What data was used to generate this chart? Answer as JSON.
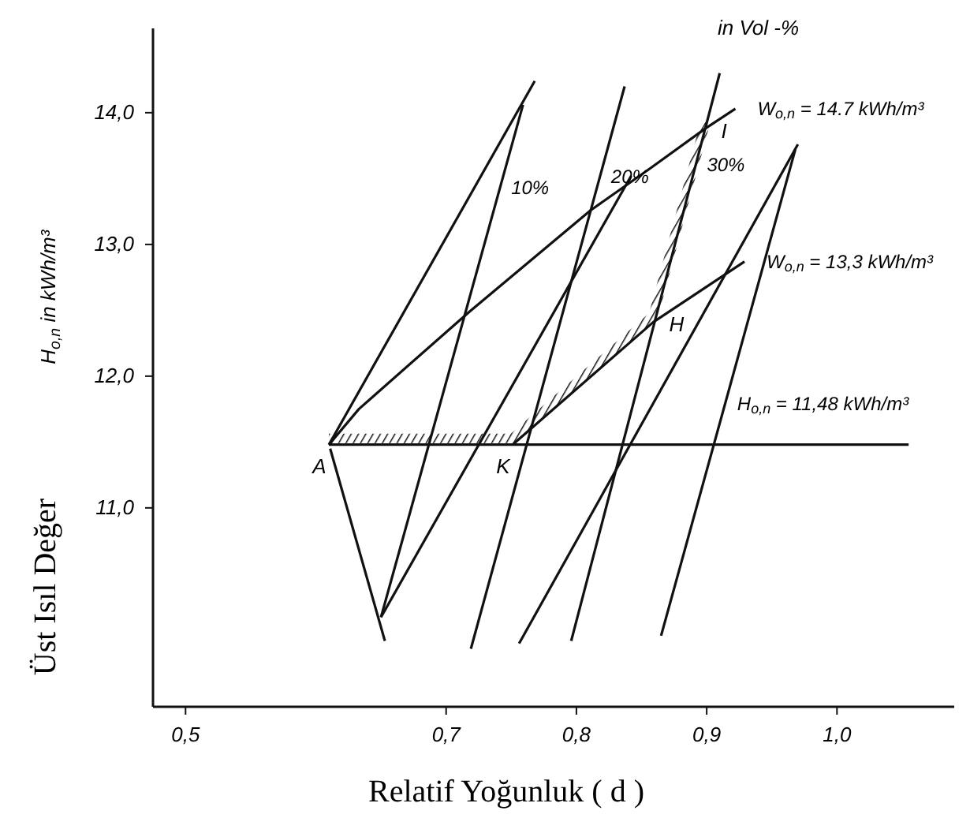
{
  "chart_data": {
    "type": "line",
    "xlabel": "Relatif Yoğunluk ( d )",
    "ylabel": "Üst Isıl Değer",
    "xlim": [
      0.475,
      1.09
    ],
    "ylim": [
      9.49,
      14.64
    ],
    "xticks": [
      {
        "value": 0.5,
        "label": "0,5"
      },
      {
        "value": 0.7,
        "label": "0,7"
      },
      {
        "value": 0.8,
        "label": "0,8"
      },
      {
        "value": 0.9,
        "label": "0,9"
      },
      {
        "value": 1.0,
        "label": "1,0"
      }
    ],
    "yticks": [
      {
        "value": 11,
        "label": "11,0"
      },
      {
        "value": 12,
        "label": "12,0"
      },
      {
        "value": 13,
        "label": "13,0"
      },
      {
        "value": 14,
        "label": "14,0"
      }
    ],
    "grid": false,
    "tick_labels": "xy",
    "series": [
      {
        "name": "W$_{o,n}$ = 14.7 kWh/m³",
        "color": "#111111",
        "x": [
          0.61,
          0.633,
          0.718,
          0.811,
          0.857,
          0.899,
          0.922
        ],
        "values": [
          11.48,
          11.75,
          12.49,
          13.26,
          13.58,
          13.88,
          14.03
        ]
      },
      {
        "name": "W$_{o,n}$ = 13,3 kWh/m³",
        "color": "#111111",
        "x": [
          0.751,
          0.859,
          0.929
        ],
        "values": [
          11.48,
          12.41,
          12.87
        ]
      },
      {
        "name": "H$_{o,n}$ = 11,48 kWh/m³",
        "color": "#111111",
        "x": [
          0.61,
          1.055
        ],
        "values": [
          11.48,
          11.48
        ]
      },
      {
        "color": "#111111",
        "x": [
          0.61,
          0.768
        ],
        "values": [
          11.48,
          14.24
        ]
      },
      {
        "name": "10%",
        "color": "#111111",
        "x": [
          0.65,
          0.759
        ],
        "values": [
          10.17,
          14.06
        ]
      },
      {
        "color": "#111111",
        "x": [
          0.611,
          0.653
        ],
        "values": [
          11.45,
          9.99
        ]
      },
      {
        "color": "#111111",
        "x": [
          0.65,
          0.842
        ],
        "values": [
          10.17,
          13.52
        ]
      },
      {
        "name": "20%",
        "color": "#111111",
        "x": [
          0.719,
          0.837
        ],
        "values": [
          9.93,
          14.2
        ]
      },
      {
        "name": "30%",
        "color": "#111111",
        "x": [
          0.796,
          0.91
        ],
        "values": [
          9.99,
          14.3
        ]
      },
      {
        "color": "#111111",
        "x": [
          0.756,
          0.97
        ],
        "values": [
          9.97,
          13.76
        ]
      },
      {
        "color": "#111111",
        "x": [
          0.865,
          0.968
        ],
        "values": [
          10.03,
          13.72
        ]
      }
    ],
    "annotations": [
      "in Vol -%",
      "H$_{o,n}$ in kWh/m³",
      {
        "text": "A",
        "x": 0.61,
        "y": 11.48
      },
      {
        "text": "K",
        "x": 0.751,
        "y": 11.48
      },
      {
        "text": "H",
        "x": 0.859,
        "y": 12.41
      },
      {
        "text": "I",
        "x": 0.899,
        "y": 13.88
      }
    ]
  }
}
